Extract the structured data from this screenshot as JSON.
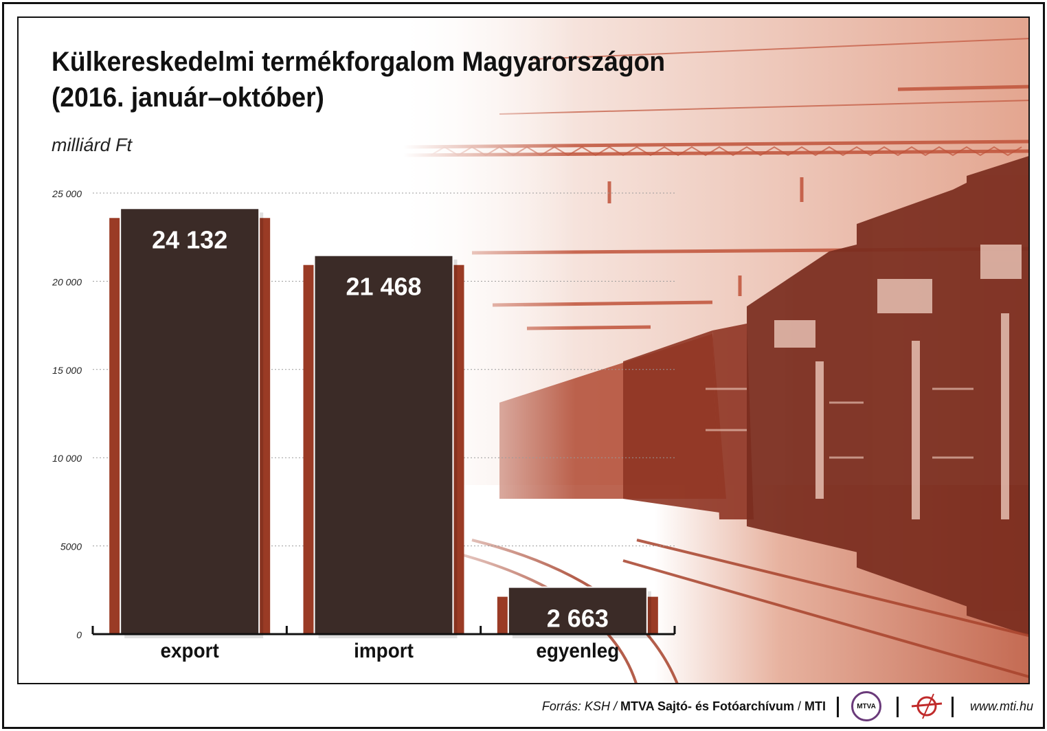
{
  "title_line1": "Külkereskedelmi termékforgalom Magyarországon",
  "title_line2": "(2016. január–október)",
  "unit": "milliárd Ft",
  "colors": {
    "bar_fill": "#3b2b27",
    "bar_accent": "#9a3b25",
    "value_text": "#ffffff",
    "illustration": "#c0533a"
  },
  "chart_data": {
    "type": "bar",
    "categories": [
      "export",
      "import",
      "egyenleg"
    ],
    "values": [
      24132,
      21468,
      2663
    ],
    "value_labels": [
      "24 132",
      "21 468",
      "2 663"
    ],
    "ylim": [
      0,
      25000
    ],
    "yticks": [
      0,
      5000,
      10000,
      15000,
      20000,
      25000
    ],
    "ytick_labels": [
      "0",
      "5000",
      "10 000",
      "15 000",
      "20 000",
      "25 000"
    ],
    "grid": true,
    "xlabel": "",
    "ylabel": ""
  },
  "footer": {
    "source_prefix": "Forrás: KSH / ",
    "source_main": "MTVA Sajtó- és Fotóarchívum",
    "source_sep": " / ",
    "source_end": "MTI",
    "mtva_logo_text": "MTVA",
    "url": "www.mti.hu"
  }
}
